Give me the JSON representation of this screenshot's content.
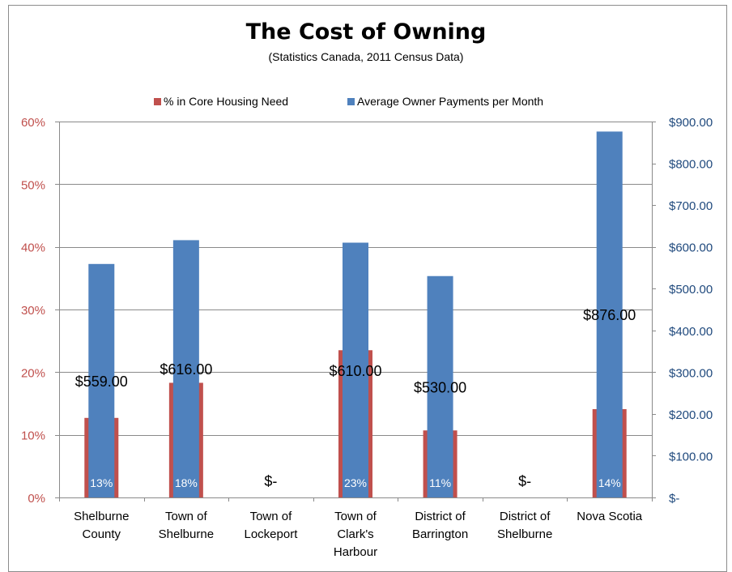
{
  "chart_data": {
    "type": "bar",
    "title": "The Cost of Owning",
    "subtitle": "(Statistics Canada, 2011 Census Data)",
    "categories": [
      [
        "Shelburne",
        "County"
      ],
      [
        "Town of",
        "Shelburne"
      ],
      [
        "Town of",
        "Lockeport"
      ],
      [
        "Town of",
        "Clark's",
        "Harbour"
      ],
      [
        "District of",
        "Barrington"
      ],
      [
        "District of",
        "Shelburne"
      ],
      [
        "Nova Scotia"
      ]
    ],
    "series": [
      {
        "name": "% in Core Housing Need",
        "axis": "left",
        "color": "#c0504d",
        "values": [
          0.127,
          0.183,
          null,
          0.235,
          0.107,
          null,
          0.141
        ],
        "labels": [
          "13%",
          "18%",
          "",
          "23%",
          "11%",
          "",
          "14%"
        ]
      },
      {
        "name": "Average Owner Payments per Month",
        "axis": "right",
        "color": "#4f81bd",
        "values": [
          559,
          616,
          0,
          610,
          530,
          0,
          876
        ],
        "labels": [
          "$559.00",
          "$616.00",
          "$-",
          "$610.00",
          "$530.00",
          "$-",
          "$876.00"
        ]
      }
    ],
    "left_axis": {
      "ticks": [
        "0%",
        "10%",
        "20%",
        "30%",
        "40%",
        "50%",
        "60%"
      ],
      "range": [
        0,
        0.6
      ],
      "color": "#c0504d"
    },
    "right_axis": {
      "ticks": [
        "$-",
        "$100.00",
        "$200.00",
        "$300.00",
        "$400.00",
        "$500.00",
        "$600.00",
        "$700.00",
        "$800.00",
        "$900.00"
      ],
      "range": [
        0,
        900
      ],
      "color": "#1f497d"
    },
    "grid": true,
    "legend_position": "top"
  }
}
